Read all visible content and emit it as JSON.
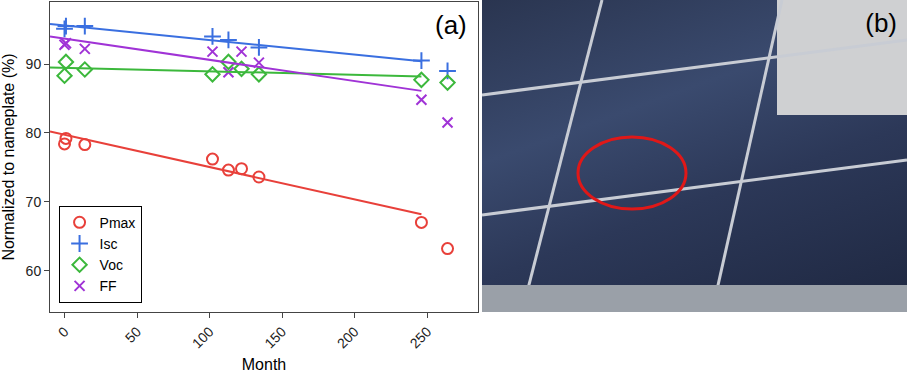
{
  "chart_data": {
    "type": "scatter",
    "x_label": "Month",
    "y_label": "Normalized to nameplate (%)",
    "annotations": [
      "(a)"
    ],
    "xlim": [
      -10,
      285
    ],
    "xticks": [
      0,
      50,
      100,
      150,
      200,
      250
    ],
    "ylim": [
      54,
      99
    ],
    "yticks": [
      60,
      70,
      80,
      90
    ],
    "grid": false,
    "legend": "lower left",
    "series": [
      {
        "name": "Pmax",
        "color": "#e8403a",
        "marker": "circle-open",
        "x": [
          0,
          1,
          14,
          102,
          113,
          122,
          134,
          246,
          264
        ],
        "values": [
          78.4,
          79.2,
          78.3,
          76.2,
          74.6,
          74.8,
          73.6,
          67.0,
          63.2
        ],
        "trend": {
          "x": [
            -10,
            246
          ],
          "values": [
            80.2,
            68.2
          ]
        }
      },
      {
        "name": "Isc",
        "color": "#3a6fe0",
        "marker": "cross",
        "x": [
          0,
          1,
          14,
          102,
          113,
          134,
          246,
          264
        ],
        "values": [
          95.1,
          95.5,
          95.5,
          94.0,
          93.5,
          92.4,
          90.5,
          89.0
        ],
        "trend": {
          "x": [
            -10,
            246
          ],
          "values": [
            95.8,
            90.4
          ]
        }
      },
      {
        "name": "Voc",
        "color": "#3cb83c",
        "marker": "diamond-open",
        "x": [
          0,
          1,
          14,
          102,
          113,
          122,
          134,
          246,
          264
        ],
        "values": [
          88.3,
          90.3,
          89.2,
          88.5,
          90.3,
          89.3,
          88.5,
          87.7,
          87.3
        ],
        "trend": {
          "x": [
            -10,
            246
          ],
          "values": [
            89.5,
            88.2
          ]
        }
      },
      {
        "name": "FF",
        "color": "#a033d6",
        "marker": "x",
        "x": [
          0,
          1,
          14,
          102,
          113,
          122,
          134,
          246,
          264
        ],
        "values": [
          92.8,
          93.0,
          92.2,
          91.8,
          88.8,
          91.8,
          90.2,
          84.8,
          81.5
        ],
        "trend": {
          "x": [
            -10,
            246
          ],
          "values": [
            94.0,
            86.1
          ]
        }
      }
    ]
  },
  "photo": {
    "label": "(b)"
  }
}
